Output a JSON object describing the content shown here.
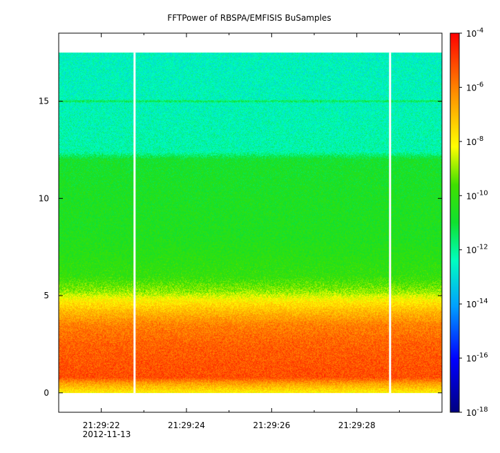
{
  "chart_data": {
    "type": "heatmap",
    "title": "FFTPower of RBSPA/EMFISIS  BuSamples",
    "xlabel": "",
    "ylabel": "",
    "x_time_range": [
      "21:29:21",
      "21:29:30"
    ],
    "ylim": [
      -1,
      18.5
    ],
    "y_ticks": [
      {
        "value": 0,
        "label": "0"
      },
      {
        "value": 5,
        "label": "5"
      },
      {
        "value": 10,
        "label": "10"
      },
      {
        "value": 15,
        "label": "15"
      }
    ],
    "x_ticks": [
      {
        "time": "21:29:22",
        "label": "21:29:22",
        "sublabel": "2012-11-13"
      },
      {
        "time": "21:29:24",
        "label": "21:29:24",
        "sublabel": ""
      },
      {
        "time": "21:29:26",
        "label": "21:29:26",
        "sublabel": ""
      },
      {
        "time": "21:29:28",
        "label": "21:29:28",
        "sublabel": ""
      }
    ],
    "x_minor_ticks": [
      "21:29:23",
      "21:29:25",
      "21:29:27",
      "21:29:29"
    ],
    "data_y_range": [
      0,
      17.5
    ],
    "data_gaps": [
      "21:29:23",
      "21:29:29"
    ],
    "colorbar": {
      "scale": "log",
      "range": [
        1e-18,
        0.0001
      ],
      "ticks": [
        {
          "exp": -4,
          "base": "10",
          "power": "-4"
        },
        {
          "exp": -6,
          "base": "10",
          "power": "-6"
        },
        {
          "exp": -8,
          "base": "10",
          "power": "-8"
        },
        {
          "exp": -10,
          "base": "10",
          "power": "-10"
        },
        {
          "exp": -12,
          "base": "10",
          "power": "-12"
        },
        {
          "exp": -14,
          "base": "10",
          "power": "-14"
        },
        {
          "exp": -16,
          "base": "10",
          "power": "-16"
        },
        {
          "exp": -18,
          "base": "10",
          "power": "-18"
        }
      ]
    },
    "power_profile": {
      "y": [
        0.0,
        0.5,
        0.8,
        1.5,
        2.5,
        3.5,
        4.2,
        4.8,
        5.2,
        6.0,
        8.0,
        10.0,
        12.0,
        12.4,
        14.9,
        15.0,
        15.1,
        17.5
      ],
      "log10_power": [
        -8.0,
        -6.5,
        -5.2,
        -5.3,
        -5.5,
        -6.0,
        -7.0,
        -8.0,
        -9.0,
        -10.0,
        -10.5,
        -10.6,
        -10.8,
        -12.2,
        -12.4,
        -11.3,
        -12.4,
        -12.5
      ]
    },
    "grid": false,
    "legend": "none"
  }
}
